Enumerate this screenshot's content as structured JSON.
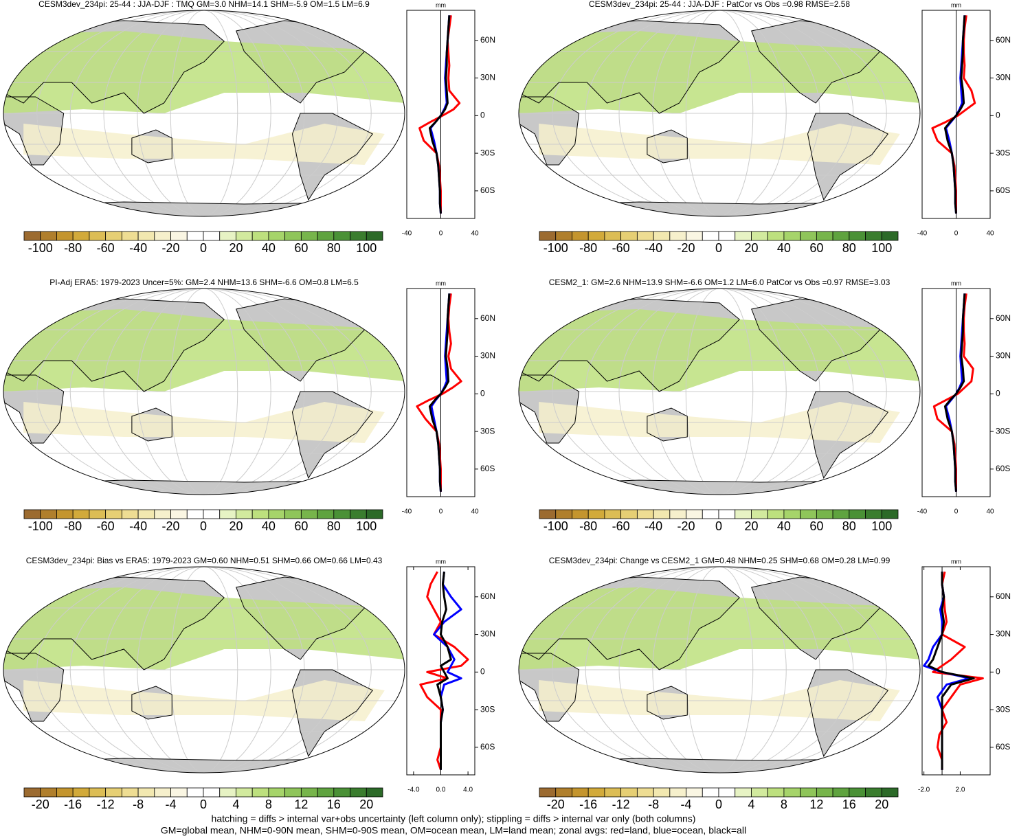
{
  "chart_data": [
    {
      "type": "map",
      "title": "CESM3dev_234pi: 25-44 : JJA-DJF : TMQ GM=3.0 NHM=14.1 SHM=-5.9 OM=1.5 LM=6.9",
      "colorbar": {
        "colors": [
          "#9c6b30",
          "#b07f2c",
          "#c4952e",
          "#d2aa3a",
          "#dcbd55",
          "#e6cf74",
          "#eedd93",
          "#f2e8b0",
          "#f6f0cc",
          "#faf6e3",
          "#ffffff",
          "#ffffff",
          "#e7f3c4",
          "#d2ea9e",
          "#bde07e",
          "#a6d46a",
          "#8fc55a",
          "#77b54b",
          "#5fa33f",
          "#4a9136",
          "#3a7d2e",
          "#2c6a28"
        ],
        "lim": [
          -110,
          110
        ],
        "ticks": [
          -100,
          -80,
          -60,
          -40,
          -20,
          0,
          20,
          40,
          60,
          80,
          100
        ]
      },
      "profile": {
        "type": "line",
        "xlabel": "mm",
        "y": [
          80,
          70,
          60,
          50,
          40,
          30,
          20,
          10,
          5,
          0,
          -5,
          -10,
          -20,
          -30,
          -40,
          -50,
          -60,
          -70,
          -78
        ],
        "ylim": [
          -82,
          84
        ],
        "yticks": [
          {
            "value": 60,
            "label": "60N"
          },
          {
            "value": 30,
            "label": "30N"
          },
          0,
          {
            "value": -30,
            "label": "30S"
          },
          {
            "value": -60,
            "label": "60S"
          }
        ],
        "xlim": [
          -40,
          40
        ],
        "xticks": [
          -40,
          0,
          40
        ],
        "series": [
          {
            "name": "land",
            "color": "#ff0000",
            "values": [
              12,
              10,
              8,
              9,
              10,
              9,
              10,
              22,
              15,
              2,
              -12,
              -25,
              -20,
              -5,
              -2,
              -1,
              0,
              0,
              0
            ]
          },
          {
            "name": "ocean",
            "color": "#0000ff",
            "values": [
              10,
              9,
              8,
              7,
              6,
              5,
              6,
              7,
              4,
              0,
              -6,
              -12,
              -8,
              -5,
              -3,
              -2,
              -1,
              -1,
              0
            ]
          },
          {
            "name": "all",
            "color": "#000000",
            "values": [
              10,
              9,
              8,
              7,
              7,
              6,
              7,
              8,
              5,
              0,
              -6,
              -13,
              -10,
              -5,
              -3,
              -2,
              -1,
              -1,
              0
            ]
          }
        ]
      }
    },
    {
      "type": "map",
      "title": "CESM3dev_234pi: 25-44 : JJA-DJF : PatCor vs Obs =0.98 RMSE=2.58",
      "colorbar": {
        "colors": [
          "#9c6b30",
          "#b07f2c",
          "#c4952e",
          "#d2aa3a",
          "#dcbd55",
          "#e6cf74",
          "#eedd93",
          "#f2e8b0",
          "#f6f0cc",
          "#faf6e3",
          "#ffffff",
          "#ffffff",
          "#e7f3c4",
          "#d2ea9e",
          "#bde07e",
          "#a6d46a",
          "#8fc55a",
          "#77b54b",
          "#5fa33f",
          "#4a9136",
          "#3a7d2e",
          "#2c6a28"
        ],
        "lim": [
          -110,
          110
        ],
        "ticks": [
          -100,
          -80,
          -60,
          -40,
          -20,
          0,
          20,
          40,
          60,
          80,
          100
        ]
      },
      "profile": {
        "type": "line",
        "xlabel": "mm",
        "y": [
          80,
          70,
          60,
          50,
          40,
          30,
          20,
          10,
          5,
          0,
          -5,
          -10,
          -20,
          -30,
          -40,
          -50,
          -60,
          -70,
          -78
        ],
        "ylim": [
          -82,
          84
        ],
        "yticks": [
          {
            "value": 60,
            "label": "60N"
          },
          {
            "value": 30,
            "label": "30N"
          },
          0,
          {
            "value": -30,
            "label": "30S"
          },
          {
            "value": -60,
            "label": "60S"
          }
        ],
        "xlim": [
          -40,
          40
        ],
        "xticks": [
          -40,
          0,
          40
        ],
        "series": [
          {
            "name": "land",
            "color": "#ff0000",
            "values": [
              12,
              10,
              9,
              9,
              10,
              9,
              18,
              22,
              12,
              2,
              -12,
              -28,
              -22,
              -5,
              -2,
              -1,
              0,
              0,
              0
            ]
          },
          {
            "name": "ocean",
            "color": "#0000ff",
            "values": [
              10,
              9,
              8,
              7,
              6,
              5,
              6,
              7,
              4,
              0,
              -6,
              -12,
              -8,
              -5,
              -3,
              -2,
              -1,
              -1,
              0
            ]
          },
          {
            "name": "all",
            "color": "#000000",
            "values": [
              10,
              9,
              8,
              8,
              7,
              6,
              8,
              9,
              5,
              0,
              -7,
              -13,
              -10,
              -5,
              -3,
              -2,
              -1,
              -1,
              0
            ]
          }
        ]
      }
    },
    {
      "type": "map",
      "title": "PI-Adj ERA5: 1979-2023 Uncer=5%: GM=2.4 NHM=13.6 SHM=-6.6 OM=0.8 LM=6.5",
      "colorbar": {
        "colors": [
          "#9c6b30",
          "#b07f2c",
          "#c4952e",
          "#d2aa3a",
          "#dcbd55",
          "#e6cf74",
          "#eedd93",
          "#f2e8b0",
          "#f6f0cc",
          "#faf6e3",
          "#ffffff",
          "#ffffff",
          "#e7f3c4",
          "#d2ea9e",
          "#bde07e",
          "#a6d46a",
          "#8fc55a",
          "#77b54b",
          "#5fa33f",
          "#4a9136",
          "#3a7d2e",
          "#2c6a28"
        ],
        "lim": [
          -110,
          110
        ],
        "ticks": [
          -100,
          -80,
          -60,
          -40,
          -20,
          0,
          20,
          40,
          60,
          80,
          100
        ]
      },
      "profile": {
        "type": "line",
        "xlabel": "mm",
        "y": [
          80,
          70,
          60,
          50,
          40,
          30,
          20,
          10,
          5,
          0,
          -5,
          -10,
          -20,
          -30,
          -40,
          -50,
          -60,
          -70,
          -78
        ],
        "ylim": [
          -82,
          84
        ],
        "yticks": [
          {
            "value": 60,
            "label": "60N"
          },
          {
            "value": 30,
            "label": "30N"
          },
          0,
          {
            "value": -30,
            "label": "30S"
          },
          {
            "value": -60,
            "label": "60S"
          }
        ],
        "xlim": [
          -40,
          40
        ],
        "xticks": [
          -40,
          0,
          40
        ],
        "series": [
          {
            "name": "land",
            "color": "#ff0000",
            "values": [
              12,
              10,
              9,
              10,
              12,
              9,
              12,
              24,
              14,
              2,
              -14,
              -28,
              -18,
              -5,
              -2,
              -1,
              0,
              0,
              0
            ]
          },
          {
            "name": "ocean",
            "color": "#0000ff",
            "values": [
              10,
              9,
              8,
              7,
              6,
              5,
              6,
              7,
              4,
              0,
              -6,
              -11,
              -8,
              -5,
              -3,
              -2,
              -1,
              -1,
              0
            ]
          },
          {
            "name": "all",
            "color": "#000000",
            "values": [
              10,
              9,
              8,
              8,
              7,
              6,
              8,
              9,
              5,
              0,
              -7,
              -13,
              -10,
              -5,
              -3,
              -2,
              -1,
              -1,
              0
            ]
          }
        ]
      }
    },
    {
      "type": "map",
      "title": "CESM2_1: GM=2.6 NHM=13.9 SHM=-6.6 OM=1.2 LM=6.0 PatCor vs Obs =0.97 RMSE=3.03",
      "colorbar": {
        "colors": [
          "#9c6b30",
          "#b07f2c",
          "#c4952e",
          "#d2aa3a",
          "#dcbd55",
          "#e6cf74",
          "#eedd93",
          "#f2e8b0",
          "#f6f0cc",
          "#faf6e3",
          "#ffffff",
          "#ffffff",
          "#e7f3c4",
          "#d2ea9e",
          "#bde07e",
          "#a6d46a",
          "#8fc55a",
          "#77b54b",
          "#5fa33f",
          "#4a9136",
          "#3a7d2e",
          "#2c6a28"
        ],
        "lim": [
          -110,
          110
        ],
        "ticks": [
          -100,
          -80,
          -60,
          -40,
          -20,
          0,
          20,
          40,
          60,
          80,
          100
        ]
      },
      "profile": {
        "type": "line",
        "xlabel": "mm",
        "y": [
          80,
          70,
          60,
          50,
          40,
          30,
          20,
          10,
          5,
          0,
          -5,
          -10,
          -20,
          -30,
          -40,
          -50,
          -60,
          -70,
          -78
        ],
        "ylim": [
          -82,
          84
        ],
        "yticks": [
          {
            "value": 60,
            "label": "60N"
          },
          {
            "value": 30,
            "label": "30N"
          },
          0,
          {
            "value": -30,
            "label": "30S"
          },
          {
            "value": -60,
            "label": "60S"
          }
        ],
        "xlim": [
          -40,
          40
        ],
        "xticks": [
          -40,
          0,
          40
        ],
        "series": [
          {
            "name": "land",
            "color": "#ff0000",
            "values": [
              12,
              10,
              9,
              9,
              10,
              9,
              20,
              18,
              10,
              2,
              -12,
              -26,
              -22,
              -5,
              -2,
              -1,
              0,
              0,
              0
            ]
          },
          {
            "name": "ocean",
            "color": "#0000ff",
            "values": [
              10,
              9,
              8,
              7,
              6,
              5,
              6,
              7,
              4,
              0,
              -6,
              -12,
              -8,
              -5,
              -3,
              -2,
              -1,
              -1,
              0
            ]
          },
          {
            "name": "all",
            "color": "#000000",
            "values": [
              10,
              9,
              8,
              8,
              7,
              6,
              8,
              9,
              5,
              0,
              -7,
              -13,
              -10,
              -5,
              -3,
              -2,
              -1,
              -1,
              0
            ]
          }
        ]
      }
    },
    {
      "type": "map",
      "title": "CESM3dev_234pi: Bias vs ERA5: 1979-2023 GM=0.60 NHM=0.51 SHM=0.66 OM=0.66 LM=0.43",
      "colorbar": {
        "colors": [
          "#9c6b30",
          "#b07f2c",
          "#c4952e",
          "#d2aa3a",
          "#dcbd55",
          "#e6cf74",
          "#eedd93",
          "#f2e8b0",
          "#f6f0cc",
          "#faf6e3",
          "#ffffff",
          "#ffffff",
          "#e7f3c4",
          "#d2ea9e",
          "#bde07e",
          "#a6d46a",
          "#8fc55a",
          "#77b54b",
          "#5fa33f",
          "#4a9136",
          "#3a7d2e",
          "#2c6a28"
        ],
        "lim": [
          -22,
          22
        ],
        "ticks": [
          -20,
          -16,
          -12,
          -8,
          -4,
          0,
          4,
          8,
          12,
          16,
          20
        ]
      },
      "profile": {
        "type": "line",
        "xlabel": "mm",
        "y": [
          80,
          70,
          60,
          50,
          40,
          30,
          20,
          10,
          5,
          0,
          -5,
          -10,
          -20,
          -30,
          -40,
          -50,
          -60,
          -70,
          -78
        ],
        "ylim": [
          -82,
          84
        ],
        "yticks": [
          {
            "value": 60,
            "label": "60N"
          },
          {
            "value": 30,
            "label": "30N"
          },
          0,
          {
            "value": -30,
            "label": "30S"
          },
          {
            "value": -60,
            "label": "60S"
          }
        ],
        "xlim": [
          -5,
          5
        ],
        "xticks": [
          {
            "value": -4,
            "label": "-4.0"
          },
          {
            "value": 0,
            "label": "0.0"
          },
          {
            "value": 4,
            "label": "4.0"
          }
        ],
        "series": [
          {
            "name": "land",
            "color": "#ff0000",
            "values": [
              -0.5,
              -1.5,
              -2,
              -1,
              0,
              -1,
              2,
              4,
              3,
              -2,
              1,
              -3,
              -2,
              0,
              0,
              0,
              0,
              -0.5,
              0
            ]
          },
          {
            "name": "ocean",
            "color": "#0000ff",
            "values": [
              0.5,
              0.3,
              1.5,
              3,
              0.5,
              -1,
              1,
              2,
              1.5,
              1,
              3,
              0.5,
              0,
              0.3,
              0,
              0,
              0,
              0,
              0
            ]
          },
          {
            "name": "all",
            "color": "#000000",
            "values": [
              0.5,
              0.3,
              0.5,
              0.8,
              0.2,
              0,
              1,
              1.5,
              0,
              0.5,
              1,
              -0.5,
              0,
              0.3,
              0,
              0,
              0,
              0,
              0
            ]
          }
        ]
      }
    },
    {
      "type": "map",
      "title": "CESM3dev_234pi: Change vs CESM2_1 GM=0.48 NHM=0.25 SHM=0.68 OM=0.28 LM=0.99",
      "colorbar": {
        "colors": [
          "#9c6b30",
          "#b07f2c",
          "#c4952e",
          "#d2aa3a",
          "#dcbd55",
          "#e6cf74",
          "#eedd93",
          "#f2e8b0",
          "#f6f0cc",
          "#faf6e3",
          "#ffffff",
          "#ffffff",
          "#e7f3c4",
          "#d2ea9e",
          "#bde07e",
          "#a6d46a",
          "#8fc55a",
          "#77b54b",
          "#5fa33f",
          "#4a9136",
          "#3a7d2e",
          "#2c6a28"
        ],
        "lim": [
          -22,
          22
        ],
        "ticks": [
          -20,
          -16,
          -12,
          -8,
          -4,
          0,
          4,
          8,
          12,
          16,
          20
        ]
      },
      "profile": {
        "type": "line",
        "xlabel": "mm",
        "y": [
          80,
          70,
          60,
          50,
          40,
          30,
          20,
          10,
          5,
          0,
          -5,
          -10,
          -20,
          -30,
          -40,
          -50,
          -60,
          -70,
          -78
        ],
        "ylim": [
          -82,
          84
        ],
        "yticks": [
          {
            "value": 60,
            "label": "60N"
          },
          {
            "value": 30,
            "label": "30N"
          },
          0,
          {
            "value": -30,
            "label": "30S"
          },
          {
            "value": -60,
            "label": "60S"
          }
        ],
        "xlim": [
          -2.2,
          5.3
        ],
        "xticks": [
          {
            "value": -2,
            "label": "-2.0"
          },
          {
            "value": 2,
            "label": "2.0"
          }
        ],
        "series": [
          {
            "name": "land",
            "color": "#ff0000",
            "values": [
              0.3,
              0,
              0.2,
              0.3,
              0.5,
              0,
              2.5,
              1,
              0,
              -1,
              4.5,
              2,
              1,
              0,
              0.5,
              -0.3,
              -0.5,
              0,
              0
            ]
          },
          {
            "name": "ocean",
            "color": "#0000ff",
            "values": [
              0,
              0,
              0.2,
              -0.2,
              0,
              0,
              -1,
              -1.5,
              -2,
              0,
              3,
              0.5,
              -0.5,
              0,
              0,
              0,
              0,
              0,
              0
            ]
          },
          {
            "name": "all",
            "color": "#000000",
            "values": [
              0,
              0,
              0.2,
              0,
              0.2,
              0,
              -0.5,
              -1,
              -1.5,
              0,
              3.5,
              1,
              0,
              0,
              0,
              0,
              0,
              0,
              0
            ]
          }
        ]
      }
    }
  ],
  "notes": [
    "hatching = diffs > internal var+obs uncertainty (left column only); stippling = diffs > internal var only (both columns)",
    "GM=global mean, NHM=0-90N mean, SHM=0-90S mean, OM=ocean mean, LM=land mean; zonal avgs: red=land, blue=ocean, black=all"
  ]
}
